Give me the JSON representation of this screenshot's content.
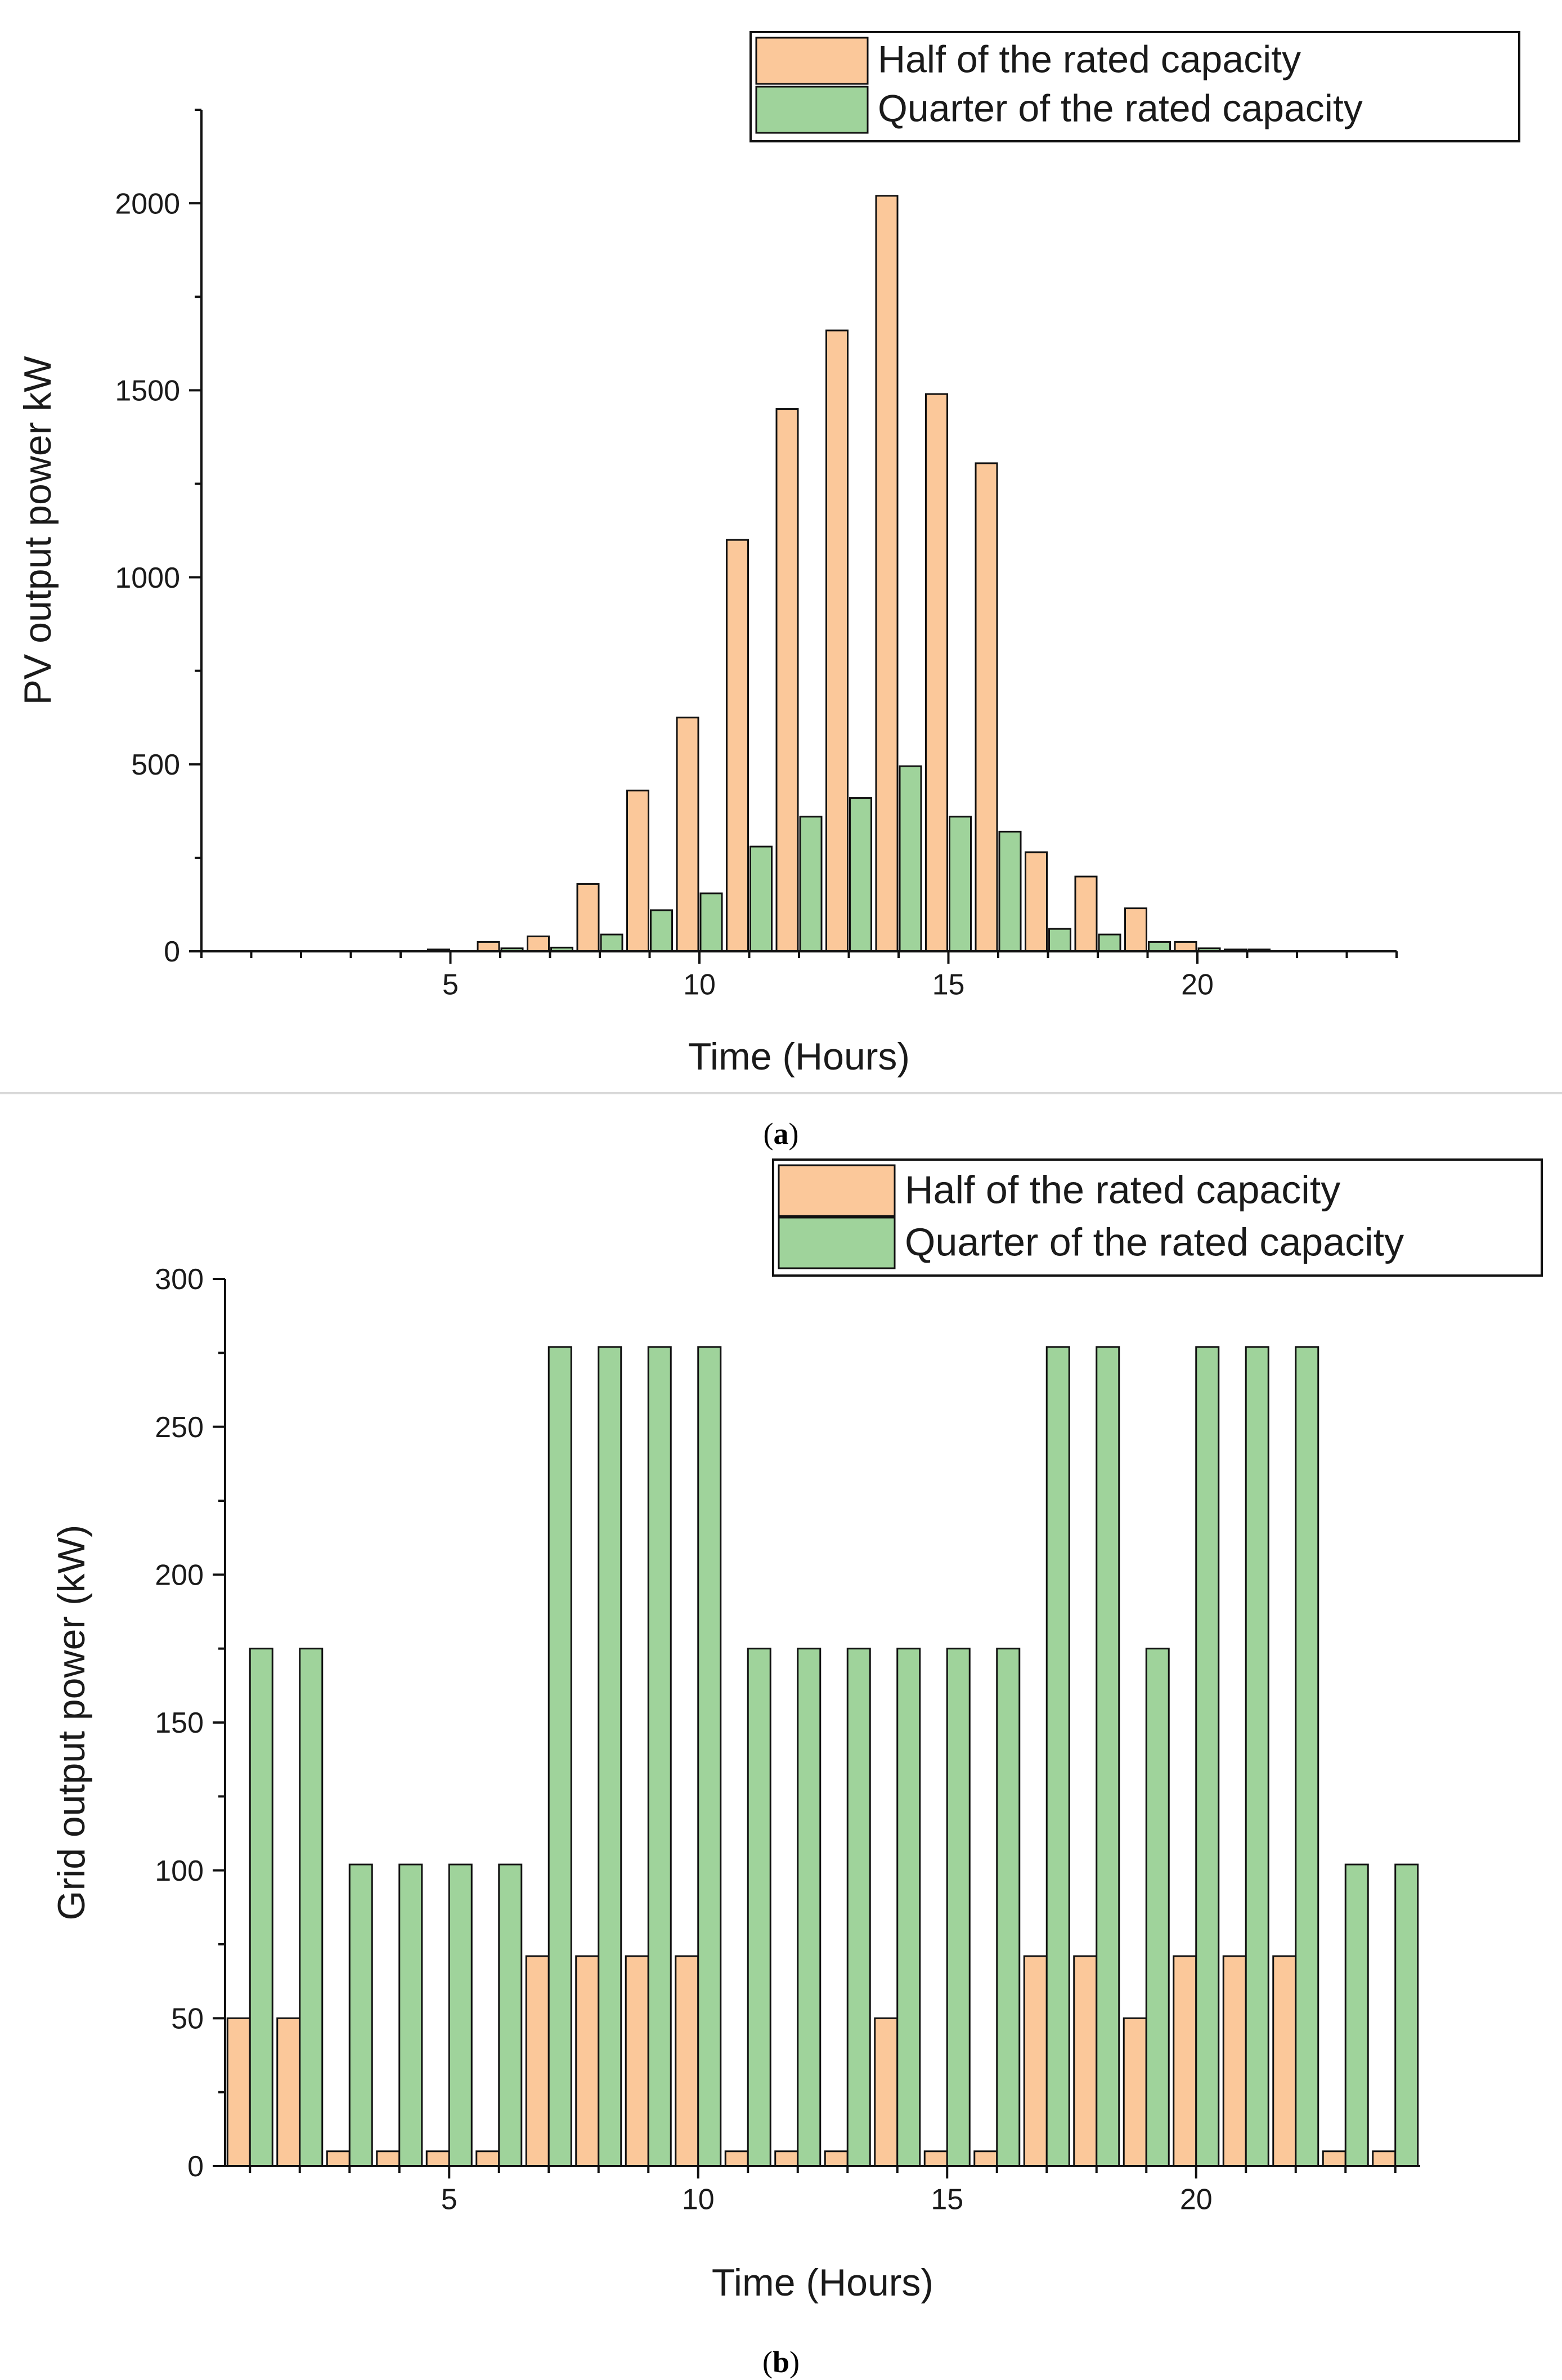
{
  "colors": {
    "half": "#FBC89A",
    "quarter": "#9FD39B",
    "bar_stroke": "#111111",
    "axis": "#111111",
    "divider": "#d9d9d9"
  },
  "chart_data": [
    {
      "panel": "a",
      "type": "bar",
      "title": "",
      "xlabel": "Time (Hours)",
      "ylabel": "PV output power kW",
      "xlim": [
        0,
        24
      ],
      "ylim": [
        0,
        2250
      ],
      "xticks": [
        5,
        10,
        15,
        20
      ],
      "yticks": [
        0,
        500,
        1000,
        1500,
        2000
      ],
      "grid": false,
      "legend_position": "top-right",
      "x": [
        1,
        2,
        3,
        4,
        5,
        6,
        7,
        8,
        9,
        10,
        11,
        12,
        13,
        14,
        15,
        16,
        17,
        18,
        19,
        20,
        21,
        22,
        23,
        24
      ],
      "series": [
        {
          "name": "Half of the rated capacity",
          "color": "#FBC89A",
          "values": [
            0,
            0,
            0,
            0,
            5,
            25,
            40,
            180,
            430,
            625,
            1100,
            1450,
            1660,
            2020,
            1490,
            1305,
            265,
            200,
            115,
            25,
            5,
            0,
            0,
            0
          ]
        },
        {
          "name": "Quarter of the rated capacity",
          "color": "#9FD39B",
          "values": [
            0,
            0,
            0,
            0,
            0,
            8,
            10,
            45,
            110,
            155,
            280,
            360,
            410,
            495,
            360,
            320,
            60,
            45,
            25,
            8,
            5,
            0,
            0,
            0
          ]
        }
      ]
    },
    {
      "panel": "b",
      "type": "bar",
      "title": "",
      "xlabel": "Time (Hours)",
      "ylabel": "Grid output power (kW)",
      "xlim": [
        0.5,
        24.5
      ],
      "ylim": [
        0,
        300
      ],
      "xticks": [
        5,
        10,
        15,
        20
      ],
      "yticks": [
        0,
        50,
        100,
        150,
        200,
        250,
        300
      ],
      "grid": false,
      "legend_position": "top-right",
      "x": [
        1,
        2,
        3,
        4,
        5,
        6,
        7,
        8,
        9,
        10,
        11,
        12,
        13,
        14,
        15,
        16,
        17,
        18,
        19,
        20,
        21,
        22,
        23,
        24
      ],
      "series": [
        {
          "name": "Half of the rated capacity",
          "color": "#FBC89A",
          "values": [
            50,
            50,
            5,
            5,
            5,
            5,
            71,
            71,
            71,
            71,
            5,
            5,
            5,
            50,
            5,
            5,
            71,
            71,
            50,
            71,
            71,
            71,
            5,
            5
          ]
        },
        {
          "name": "Quarter of the rated capacity",
          "color": "#9FD39B",
          "values": [
            175,
            175,
            102,
            102,
            102,
            102,
            277,
            277,
            277,
            277,
            175,
            175,
            175,
            175,
            175,
            175,
            277,
            277,
            175,
            277,
            277,
            277,
            102,
            102
          ]
        }
      ]
    }
  ],
  "captions": {
    "a": {
      "open": "(",
      "letter": "a",
      "close": ")"
    },
    "b": {
      "open": "(",
      "letter": "b",
      "close": ")"
    }
  }
}
